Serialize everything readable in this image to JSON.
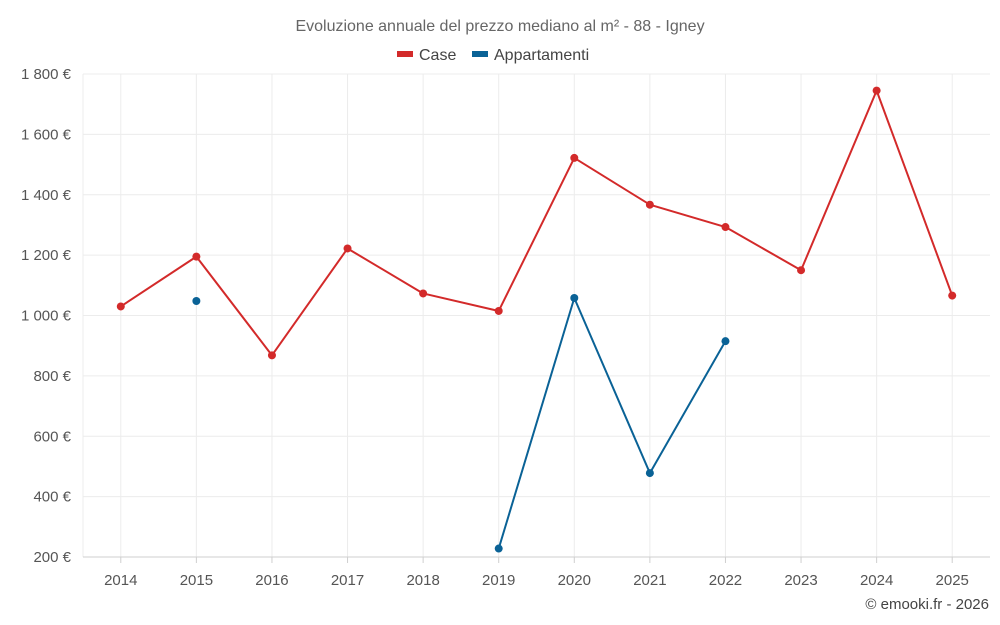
{
  "chart_data": {
    "type": "line",
    "title": "Evoluzione annuale del prezzo mediano al m² - 88 - Igney",
    "categories": [
      "2014",
      "2015",
      "2016",
      "2017",
      "2018",
      "2019",
      "2020",
      "2021",
      "2022",
      "2023",
      "2024",
      "2025"
    ],
    "ylim": [
      200,
      1800
    ],
    "yticks": [
      200,
      400,
      600,
      800,
      1000,
      1200,
      1400,
      1600,
      1800
    ],
    "ytick_labels": [
      "200 €",
      "400 €",
      "600 €",
      "800 €",
      "1 000 €",
      "1 200 €",
      "1 400 €",
      "1 600 €",
      "1 800 €"
    ],
    "grid": true,
    "legend_position": "top-center",
    "series": [
      {
        "name": "Case",
        "color": "#d32a2a",
        "values": [
          1030,
          1195,
          868,
          1222,
          1073,
          1015,
          1522,
          1367,
          1293,
          1150,
          1745,
          1066
        ]
      },
      {
        "name": "Appartamenti",
        "color": "#0a6296",
        "values": [
          null,
          1048,
          null,
          null,
          null,
          228,
          1058,
          478,
          915,
          null,
          null,
          null
        ]
      }
    ]
  },
  "credit": "© emooki.fr - 2026"
}
